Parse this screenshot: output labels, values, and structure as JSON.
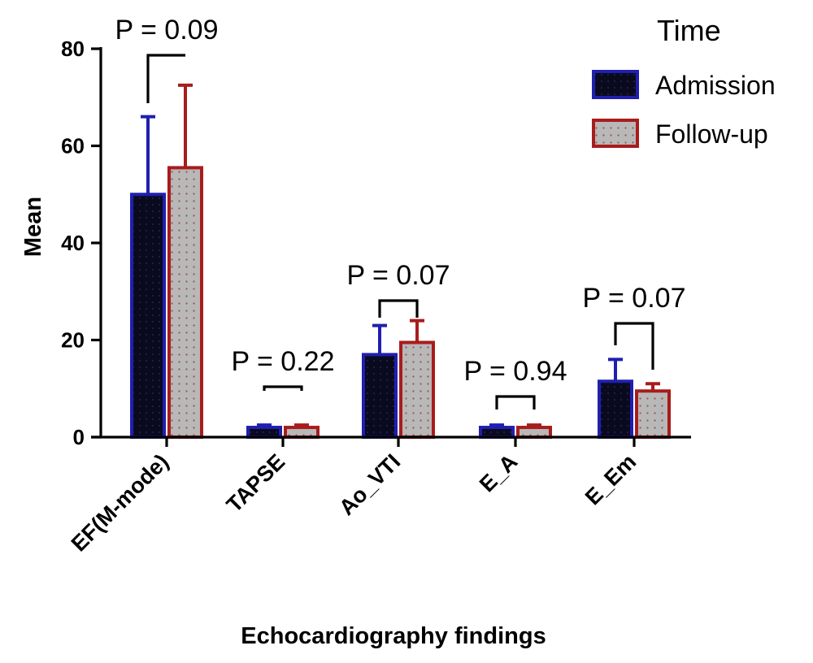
{
  "chart_data": {
    "type": "bar",
    "xlabel": "Echocardiography findings",
    "ylabel": "Mean",
    "ylim": [
      0,
      80
    ],
    "yticks": [
      0,
      20,
      40,
      60,
      80
    ],
    "grid": false,
    "categories": [
      "EF(M-mode)",
      "TAPSE",
      "Ao_VTI",
      "E_A",
      "E_Em"
    ],
    "legend": {
      "title": "Time",
      "position": "top-right"
    },
    "series": [
      {
        "name": "Admission",
        "values": [
          50,
          2,
          17,
          2,
          11.5
        ],
        "error": [
          16,
          0.5,
          6,
          0.5,
          4.5
        ],
        "fill": "#0a0a1e",
        "edge": "#1f1fb0"
      },
      {
        "name": "Follow-up",
        "values": [
          55.5,
          2,
          19.5,
          2,
          9.5
        ],
        "error": [
          17,
          0.5,
          4.5,
          0.5,
          1.5
        ],
        "fill": "#b8b8b8",
        "edge": "#a81c1c"
      }
    ],
    "annotations": [
      "P = 0.09",
      "P = 0.22",
      "P = 0.07",
      "P = 0.94",
      "P = 0.07"
    ]
  }
}
